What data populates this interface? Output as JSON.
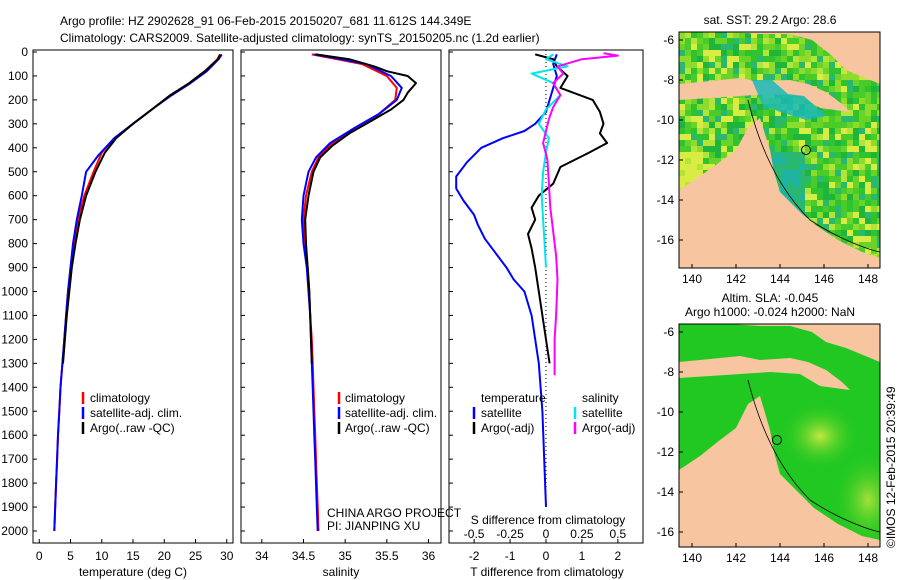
{
  "header": {
    "line1": "Argo profile: HZ 2902628_91 06-Feb-2015 20150207_681 11.612S 144.349E",
    "line2": "Climatology: CARS2009. Satellite-adjusted climatology: synTS_20150205.nc (1.2d earlier)"
  },
  "colors": {
    "climatology": "#ff0000",
    "satellite": "#0000ff",
    "argo": "#000000",
    "sal_sat": "#00e5ee",
    "sal_argo": "#ff00ff",
    "land": "#f7c59f"
  },
  "chart_data": [
    {
      "type": "line",
      "title": "temperature",
      "xlabel": "temperature (deg C)",
      "ylabel": "depth",
      "xlim": [
        -1,
        31
      ],
      "ylim": [
        2000,
        0
      ],
      "xticks": [
        0,
        5,
        10,
        15,
        20,
        25,
        30
      ],
      "yticks": [
        0,
        100,
        200,
        300,
        400,
        500,
        600,
        700,
        800,
        900,
        1000,
        1100,
        1200,
        1300,
        1400,
        1500,
        1600,
        1700,
        1800,
        1900,
        2000
      ],
      "legend": [
        "climatology",
        "satellite-adj. clim.",
        "Argo(..raw -QC)"
      ],
      "series": [
        {
          "name": "climatology",
          "color": "#ff0000",
          "points": [
            [
              28.9,
              10
            ],
            [
              28.5,
              30
            ],
            [
              26.5,
              80
            ],
            [
              24,
              130
            ],
            [
              21,
              180
            ],
            [
              18,
              240
            ],
            [
              15,
              300
            ],
            [
              12,
              360
            ],
            [
              10,
              420
            ],
            [
              8.7,
              500
            ],
            [
              7.2,
              600
            ],
            [
              6.2,
              700
            ],
            [
              5.5,
              800
            ],
            [
              5,
              900
            ],
            [
              4.6,
              1000
            ],
            [
              4.3,
              1100
            ],
            [
              4,
              1200
            ],
            [
              3.7,
              1300
            ],
            [
              3.4,
              1400
            ],
            [
              3.2,
              1500
            ],
            [
              3,
              1600
            ],
            [
              2.85,
              1700
            ],
            [
              2.7,
              1800
            ],
            [
              2.55,
              1900
            ],
            [
              2.4,
              2000
            ]
          ]
        },
        {
          "name": "satellite-adj. clim.",
          "color": "#0000ff",
          "points": [
            [
              29.2,
              10
            ],
            [
              28.7,
              30
            ],
            [
              26.8,
              80
            ],
            [
              24.2,
              130
            ],
            [
              21.2,
              180
            ],
            [
              18,
              240
            ],
            [
              15,
              300
            ],
            [
              12,
              360
            ],
            [
              9.5,
              430
            ],
            [
              7.5,
              500
            ],
            [
              6.8,
              600
            ],
            [
              6,
              700
            ],
            [
              5.4,
              800
            ],
            [
              5,
              900
            ],
            [
              4.6,
              1000
            ],
            [
              4.3,
              1100
            ],
            [
              4,
              1200
            ],
            [
              3.7,
              1300
            ],
            [
              3.4,
              1400
            ],
            [
              3.2,
              1500
            ],
            [
              3,
              1600
            ],
            [
              2.85,
              1700
            ],
            [
              2.7,
              1800
            ],
            [
              2.55,
              1900
            ],
            [
              2.4,
              2000
            ]
          ]
        },
        {
          "name": "Argo(..raw -QC)",
          "color": "#000000",
          "points": [
            [
              29,
              10
            ],
            [
              28.6,
              30
            ],
            [
              26.5,
              80
            ],
            [
              24,
              130
            ],
            [
              21,
              180
            ],
            [
              18,
              240
            ],
            [
              15,
              300
            ],
            [
              12.3,
              360
            ],
            [
              10.5,
              420
            ],
            [
              9,
              500
            ],
            [
              7.5,
              600
            ],
            [
              6.5,
              700
            ],
            [
              5.8,
              800
            ],
            [
              5.2,
              900
            ],
            [
              4.8,
              1000
            ],
            [
              4.4,
              1100
            ],
            [
              4.1,
              1200
            ],
            [
              3.8,
              1300
            ]
          ]
        }
      ]
    },
    {
      "type": "line",
      "title": "salinity",
      "xlabel": "salinity",
      "ylabel": "depth",
      "xlim": [
        33.75,
        36.15
      ],
      "ylim": [
        2000,
        0
      ],
      "xticks": [
        34,
        34.5,
        35,
        35.5,
        36
      ],
      "legend": [
        "climatology",
        "satellite-adj. clim.",
        "Argo(..raw -QC)"
      ],
      "annotation": [
        "CHINA ARGO PROJECT",
        "PI: JIANPING XU"
      ],
      "series": [
        {
          "name": "climatology",
          "color": "#ff0000",
          "points": [
            [
              34.6,
              10
            ],
            [
              34.9,
              30
            ],
            [
              35.2,
              50
            ],
            [
              35.5,
              100
            ],
            [
              35.62,
              150
            ],
            [
              35.6,
              200
            ],
            [
              35.4,
              260
            ],
            [
              35.1,
              320
            ],
            [
              34.85,
              380
            ],
            [
              34.68,
              440
            ],
            [
              34.6,
              500
            ],
            [
              34.53,
              600
            ],
            [
              34.5,
              700
            ],
            [
              34.52,
              800
            ],
            [
              34.55,
              900
            ],
            [
              34.57,
              1000
            ],
            [
              34.58,
              1100
            ],
            [
              34.6,
              1200
            ],
            [
              34.61,
              1300
            ],
            [
              34.62,
              1400
            ],
            [
              34.63,
              1500
            ],
            [
              34.64,
              1600
            ],
            [
              34.65,
              1700
            ],
            [
              34.66,
              1800
            ],
            [
              34.67,
              1900
            ],
            [
              34.68,
              2000
            ]
          ]
        },
        {
          "name": "satellite-adj. clim.",
          "color": "#0000ff",
          "points": [
            [
              34.63,
              10
            ],
            [
              34.95,
              30
            ],
            [
              35.25,
              50
            ],
            [
              35.55,
              100
            ],
            [
              35.68,
              150
            ],
            [
              35.62,
              200
            ],
            [
              35.4,
              260
            ],
            [
              35.1,
              320
            ],
            [
              34.82,
              380
            ],
            [
              34.65,
              440
            ],
            [
              34.56,
              500
            ],
            [
              34.5,
              600
            ],
            [
              34.48,
              700
            ],
            [
              34.5,
              800
            ],
            [
              34.54,
              900
            ],
            [
              34.56,
              1000
            ],
            [
              34.58,
              1100
            ],
            [
              34.59,
              1200
            ],
            [
              34.6,
              1300
            ],
            [
              34.61,
              1400
            ],
            [
              34.62,
              1500
            ],
            [
              34.63,
              1600
            ],
            [
              34.64,
              1700
            ],
            [
              34.65,
              1800
            ],
            [
              34.66,
              1900
            ],
            [
              34.67,
              2000
            ]
          ]
        },
        {
          "name": "Argo(..raw -QC)",
          "color": "#000000",
          "points": [
            [
              34.65,
              10
            ],
            [
              35.05,
              30
            ],
            [
              35.35,
              60
            ],
            [
              35.5,
              80
            ],
            [
              35.75,
              100
            ],
            [
              35.85,
              130
            ],
            [
              35.75,
              170
            ],
            [
              35.7,
              200
            ],
            [
              35.55,
              240
            ],
            [
              35.3,
              290
            ],
            [
              35.05,
              340
            ],
            [
              34.85,
              390
            ],
            [
              34.7,
              440
            ],
            [
              34.62,
              500
            ],
            [
              34.56,
              600
            ],
            [
              34.52,
              700
            ],
            [
              34.53,
              800
            ],
            [
              34.55,
              900
            ],
            [
              34.57,
              1000
            ],
            [
              34.58,
              1100
            ],
            [
              34.59,
              1200
            ],
            [
              34.6,
              1300
            ]
          ]
        }
      ]
    },
    {
      "type": "line",
      "title": "difference from climatology",
      "xlabel": "T difference from climatology",
      "xlabel_top": "S difference from climatology",
      "ylabel": "depth",
      "xlim": [
        -2.7,
        2.7
      ],
      "ylim": [
        2000,
        0
      ],
      "xticks": [
        -2,
        -1,
        0,
        1,
        2
      ],
      "xticks_top": [
        "-0.5",
        "-0.25",
        "0",
        "0.25",
        "0.5"
      ],
      "legend_t": [
        "temperature",
        "satellite",
        "Argo(-adj)"
      ],
      "legend_s": [
        "salinity",
        "satellite",
        "Argo(-adj)"
      ],
      "series": [
        {
          "name": "T satellite",
          "color": "#0000ff",
          "points": [
            [
              0.3,
              10
            ],
            [
              0.2,
              50
            ],
            [
              0.3,
              100
            ],
            [
              0.2,
              150
            ],
            [
              0.1,
              200
            ],
            [
              0,
              250
            ],
            [
              -0.3,
              300
            ],
            [
              -0.6,
              330
            ],
            [
              -1.2,
              360
            ],
            [
              -1.8,
              400
            ],
            [
              -2.2,
              460
            ],
            [
              -2.5,
              520
            ],
            [
              -2.5,
              570
            ],
            [
              -2.3,
              620
            ],
            [
              -2,
              680
            ],
            [
              -1.9,
              720
            ],
            [
              -1.7,
              780
            ],
            [
              -1.4,
              840
            ],
            [
              -1.1,
              900
            ],
            [
              -0.9,
              950
            ],
            [
              -0.6,
              1000
            ],
            [
              -0.4,
              1100
            ],
            [
              -0.3,
              1200
            ],
            [
              -0.2,
              1300
            ],
            [
              -0.15,
              1400
            ],
            [
              -0.1,
              1500
            ],
            [
              -0.05,
              1700
            ],
            [
              0,
              1900
            ]
          ]
        },
        {
          "name": "T Argo(-adj)",
          "color": "#000000",
          "points": [
            [
              -0.3,
              10
            ],
            [
              0.2,
              30
            ],
            [
              0.3,
              60
            ],
            [
              0.6,
              100
            ],
            [
              0.4,
              150
            ],
            [
              1.3,
              200
            ],
            [
              1.5,
              250
            ],
            [
              1.6,
              300
            ],
            [
              1.5,
              340
            ],
            [
              1.7,
              380
            ],
            [
              1.2,
              420
            ],
            [
              0.4,
              480
            ],
            [
              0.2,
              550
            ],
            [
              -0.2,
              600
            ],
            [
              -0.4,
              650
            ],
            [
              -0.3,
              700
            ],
            [
              -0.5,
              760
            ],
            [
              -0.4,
              820
            ],
            [
              -0.3,
              900
            ],
            [
              -0.2,
              1000
            ],
            [
              -0.1,
              1100
            ],
            [
              0,
              1200
            ],
            [
              0.1,
              1300
            ]
          ]
        },
        {
          "name": "S satellite",
          "color": "#00e5ee",
          "points": [
            [
              0.05,
              10
            ],
            [
              0.0,
              30
            ],
            [
              0.15,
              60
            ],
            [
              -0.1,
              90
            ],
            [
              0.05,
              130
            ],
            [
              0.1,
              180
            ],
            [
              0.0,
              240
            ],
            [
              -0.05,
              300
            ],
            [
              0.02,
              360
            ],
            [
              0.0,
              420
            ],
            [
              -0.02,
              500
            ],
            [
              -0.03,
              600
            ],
            [
              -0.02,
              700
            ],
            [
              -0.01,
              800
            ],
            [
              0,
              900
            ]
          ]
        },
        {
          "name": "S Argo(-adj)",
          "color": "#ff00ff",
          "points": [
            [
              0.4,
              5
            ],
            [
              0.5,
              15
            ],
            [
              0.25,
              30
            ],
            [
              0.08,
              60
            ],
            [
              0.12,
              90
            ],
            [
              0.05,
              130
            ],
            [
              0.1,
              180
            ],
            [
              0.05,
              230
            ],
            [
              0.02,
              280
            ],
            [
              0.0,
              330
            ],
            [
              -0.02,
              380
            ],
            [
              0.01,
              450
            ],
            [
              0.02,
              550
            ],
            [
              0.03,
              650
            ],
            [
              0.05,
              750
            ],
            [
              0.07,
              850
            ],
            [
              0.08,
              950
            ],
            [
              0.07,
              1100
            ],
            [
              0.06,
              1200
            ],
            [
              0.06,
              1350
            ]
          ]
        }
      ]
    }
  ],
  "maps": {
    "top": {
      "title": "sat. SST: 29.2 Argo: 28.6",
      "xticks": [
        "140",
        "142",
        "144",
        "146",
        "148"
      ],
      "yticks": [
        "-6",
        "-8",
        "-10",
        "-12",
        "-14",
        "-16"
      ]
    },
    "bottom": {
      "title1": "Altim. SLA: -0.045",
      "title2": "Argo h1000: -0.024 h2000: NaN",
      "xticks": [
        "140",
        "142",
        "144",
        "146",
        "148"
      ],
      "yticks": [
        "-6",
        "-8",
        "-10",
        "-12",
        "-14",
        "-16"
      ]
    }
  },
  "watermark": "©IMOS 12-Feb-2015 20:39:49"
}
